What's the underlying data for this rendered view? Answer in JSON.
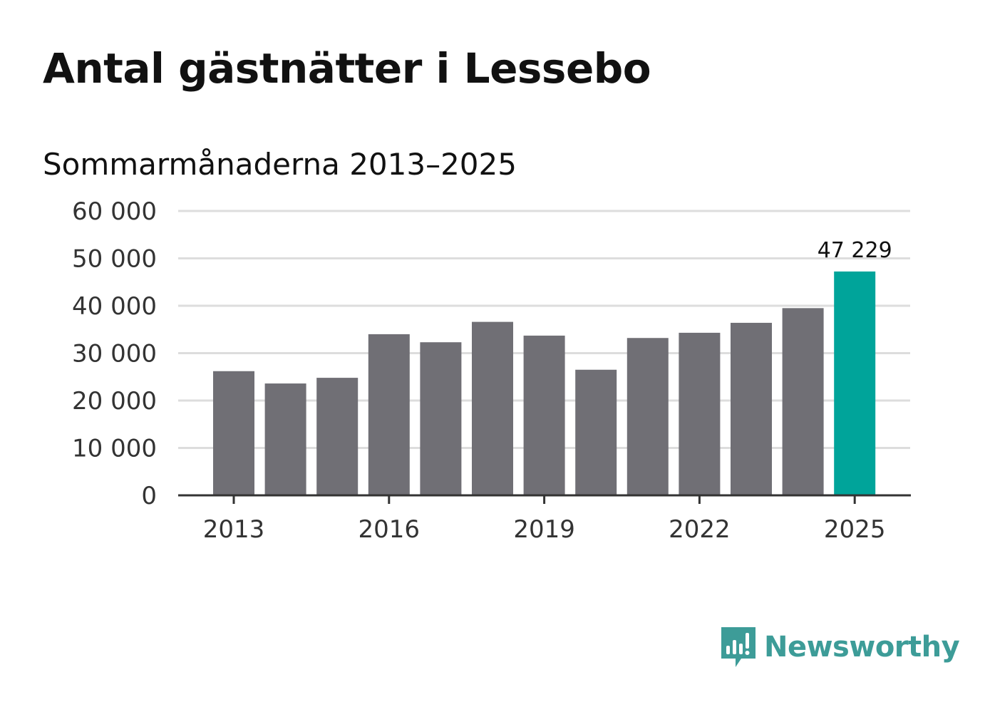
{
  "chart_data": {
    "type": "bar",
    "title": "Antal gästnätter i Lessebo",
    "subtitle": "Sommarmånaderna 2013–2025",
    "categories": [
      "2013",
      "2014",
      "2015",
      "2016",
      "2017",
      "2018",
      "2019",
      "2020",
      "2021",
      "2022",
      "2023",
      "2024",
      "2025"
    ],
    "values": [
      26200,
      23600,
      24800,
      34000,
      32300,
      36600,
      33700,
      26500,
      33200,
      34300,
      36400,
      39500,
      47229
    ],
    "ylim": [
      0,
      60000
    ],
    "yticks": [
      0,
      10000,
      20000,
      30000,
      40000,
      50000,
      60000
    ],
    "ytick_labels": [
      "0",
      "10 000",
      "20 000",
      "30 000",
      "40 000",
      "50 000",
      "60 000"
    ],
    "xtick_labels": [
      "2013",
      "2016",
      "2019",
      "2022",
      "2025"
    ],
    "highlight": {
      "category": "2025",
      "label": "47 229"
    },
    "grid": true,
    "colors": {
      "bar": "#706f75",
      "highlight": "#00a49a",
      "grid": "#dddddd",
      "axis": "#333333"
    }
  },
  "logo": {
    "name": "Newsworthy",
    "icon": "newsworthy-logo-icon",
    "color": "#3d9c98"
  }
}
